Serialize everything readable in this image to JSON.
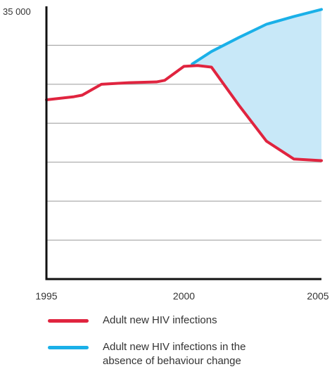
{
  "chart_data": {
    "type": "line",
    "title": "",
    "xlabel": "",
    "ylabel": "",
    "y_tick_label": "35 000",
    "x_tick_labels": [
      "1995",
      "2000",
      "2005"
    ],
    "xlim": [
      1995,
      2005
    ],
    "ylim": [
      0,
      35000
    ],
    "grid": true,
    "shaded_gap": true,
    "series": [
      {
        "name": "Adult new HIV infections",
        "color": "#e0243f",
        "x": [
          1995,
          1996,
          1996.3,
          1997,
          1998,
          1999,
          1999.3,
          2000,
          2000.5,
          2001,
          2002,
          2003,
          2004,
          2005
        ],
        "y": [
          23000,
          23400,
          23600,
          25000,
          25200,
          25300,
          25500,
          27300,
          27400,
          27200,
          22300,
          17700,
          15400,
          15200
        ]
      },
      {
        "name": "Adult new HIV infections in the absence of behaviour change",
        "color": "#1ab0e8",
        "x": [
          2000.3,
          2001,
          2002,
          2003,
          2004,
          2005
        ],
        "y": [
          27600,
          29200,
          31000,
          32700,
          33700,
          34600
        ]
      }
    ]
  },
  "legend": {
    "items": [
      {
        "color": "#e0243f",
        "lines": [
          "Adult new HIV infections"
        ]
      },
      {
        "color": "#1ab0e8",
        "lines": [
          "Adult new HIV infections in the",
          "absence of behaviour change"
        ]
      }
    ]
  },
  "colors": {
    "fill": "#c8e8f8",
    "axis": "#111111",
    "grid": "#999999"
  }
}
